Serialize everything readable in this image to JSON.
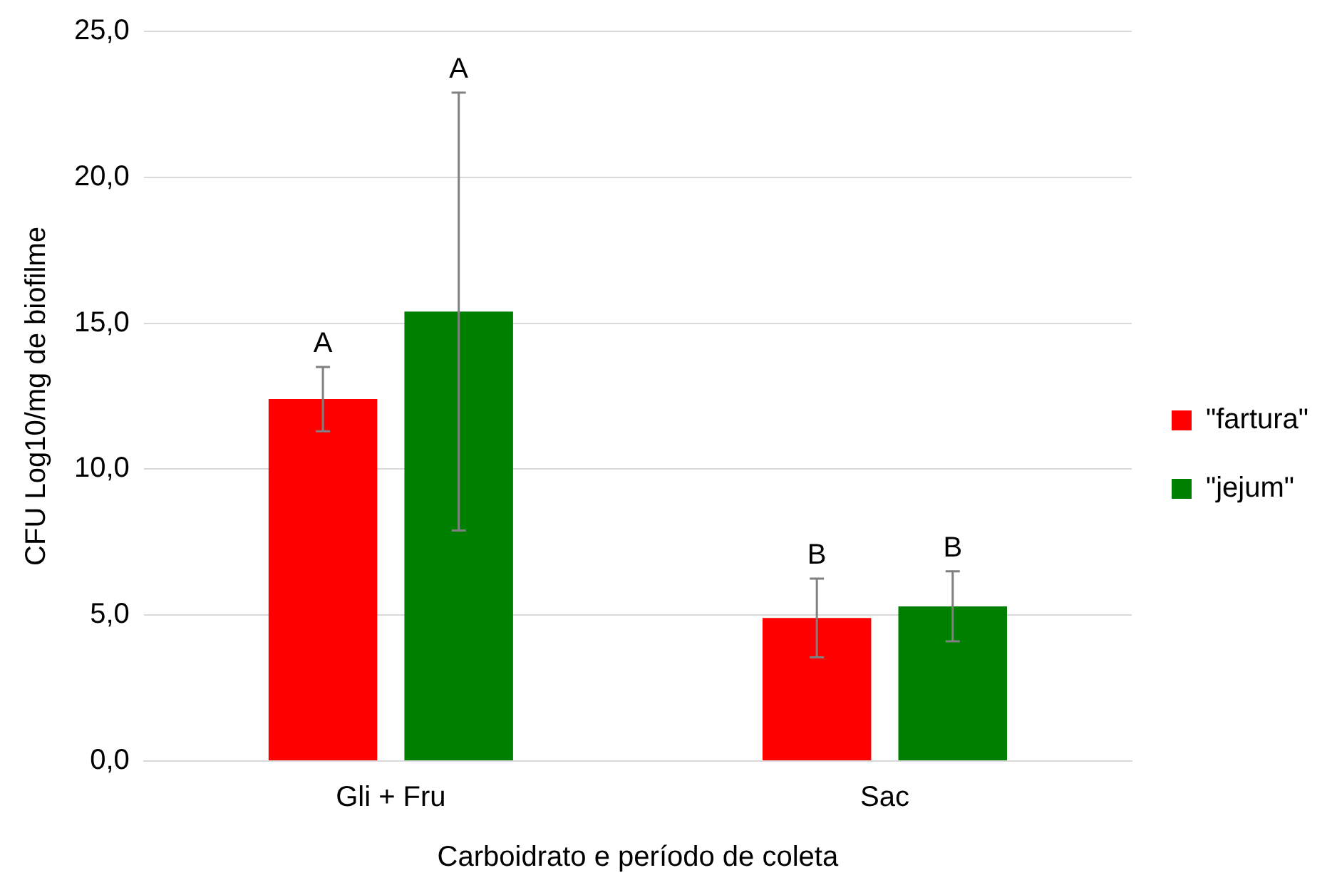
{
  "chart_data": {
    "type": "bar",
    "xlabel": "Carboidrato e período de coleta",
    "ylabel": "CFU Log10/mg de biofilme",
    "categories": [
      "Gli + Fru",
      "Sac"
    ],
    "series": [
      {
        "name": "\"fartura\"",
        "color": "#ff0000",
        "values": [
          12.4,
          4.9
        ],
        "errors": [
          1.1,
          1.35
        ]
      },
      {
        "name": "\"jejum\"",
        "color": "#008000",
        "values": [
          15.4,
          5.3
        ],
        "errors": [
          7.5,
          1.2
        ]
      }
    ],
    "ylim": [
      0,
      25
    ],
    "yticks": [
      {
        "value": 0,
        "label": "0,0"
      },
      {
        "value": 5,
        "label": "5,0"
      },
      {
        "value": 10,
        "label": "10,0"
      },
      {
        "value": 15,
        "label": "15,0"
      },
      {
        "value": 20,
        "label": "20,0"
      },
      {
        "value": 25,
        "label": "25,0"
      }
    ],
    "grid": "y",
    "legend": "right",
    "annotations": [
      "A",
      "A",
      "B",
      "B"
    ]
  }
}
